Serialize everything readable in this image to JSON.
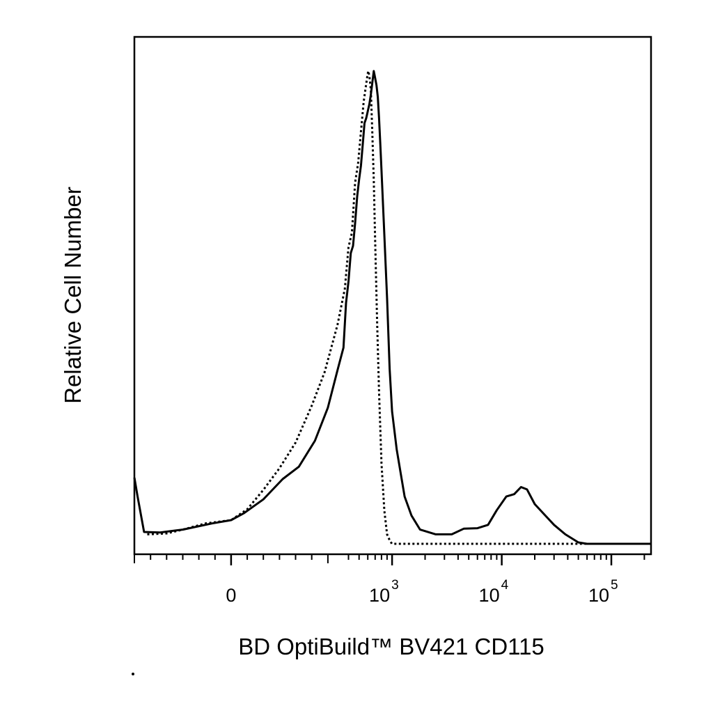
{
  "chart_data": {
    "type": "line",
    "title": "",
    "xlabel": "BD OptiBuild™ BV421 CD115",
    "ylabel": "Relative Cell Number",
    "x_scale": "biexponential",
    "xlim": [
      -300,
      230000
    ],
    "ylim": [
      0,
      1
    ],
    "y_ticks_shown": false,
    "grid": false,
    "legend": "none",
    "x_tick_labels": [
      {
        "value": 0,
        "base": "0",
        "exponent": ""
      },
      {
        "value": 1000,
        "base": "10",
        "exponent": "3"
      },
      {
        "value": 10000,
        "base": "10",
        "exponent": "4"
      },
      {
        "value": 100000,
        "base": "10",
        "exponent": "5"
      }
    ],
    "series": [
      {
        "style": "solid",
        "color": "#000000",
        "x": [
          -300,
          -290,
          -270,
          -220,
          -150,
          -60,
          0,
          40,
          100,
          160,
          210,
          260,
          300,
          330,
          360,
          380,
          400,
          420,
          440,
          460,
          480,
          500,
          520,
          540,
          560,
          580,
          600,
          620,
          640,
          660,
          680,
          700,
          720,
          740,
          760,
          780,
          800,
          840,
          900,
          950,
          1000,
          1100,
          1200,
          1300,
          1500,
          1800,
          2500,
          3500,
          4500,
          6000,
          7500,
          9000,
          11000,
          13000,
          15000,
          17000,
          20000,
          24000,
          30000,
          38000,
          50000,
          60000,
          100000,
          230000
        ],
        "y": [
          0.14,
          0.1,
          0.025,
          0.024,
          0.03,
          0.043,
          0.05,
          0.065,
          0.094,
          0.137,
          0.163,
          0.218,
          0.288,
          0.367,
          0.415,
          0.51,
          0.555,
          0.615,
          0.63,
          0.678,
          0.735,
          0.77,
          0.8,
          0.845,
          0.89,
          0.9,
          0.915,
          0.93,
          0.95,
          0.975,
          1.0,
          0.985,
          0.97,
          0.945,
          0.9,
          0.845,
          0.79,
          0.68,
          0.52,
          0.37,
          0.28,
          0.2,
          0.148,
          0.1,
          0.06,
          0.03,
          0.02,
          0.02,
          0.032,
          0.033,
          0.04,
          0.071,
          0.1,
          0.105,
          0.12,
          0.115,
          0.084,
          0.064,
          0.04,
          0.02,
          0.003,
          0.0,
          0.0,
          0.0
        ]
      },
      {
        "style": "dotted",
        "color": "#000000",
        "x": [
          -260,
          -200,
          -150,
          -80,
          0,
          50,
          100,
          150,
          200,
          250,
          290,
          330,
          370,
          400,
          430,
          460,
          490,
          520,
          550,
          570,
          590,
          605,
          620,
          640,
          660,
          680,
          700,
          730,
          760,
          800,
          850,
          900,
          960,
          1000,
          1100,
          1300,
          100000,
          230000
        ],
        "y": [
          0.02,
          0.022,
          0.03,
          0.043,
          0.05,
          0.073,
          0.114,
          0.16,
          0.214,
          0.292,
          0.363,
          0.463,
          0.539,
          0.627,
          0.658,
          0.764,
          0.806,
          0.872,
          0.935,
          0.96,
          0.985,
          1.0,
          0.99,
          0.96,
          0.87,
          0.77,
          0.64,
          0.47,
          0.32,
          0.17,
          0.07,
          0.02,
          0.005,
          0.0,
          0.0,
          0.0,
          0.0,
          0.0
        ]
      }
    ]
  }
}
